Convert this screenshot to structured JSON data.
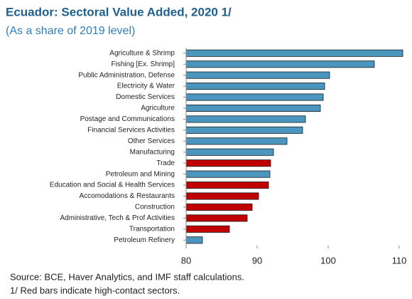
{
  "chart_data": {
    "type": "hbar",
    "title": "Ecuador: Sectoral Value Added, 2020 1/",
    "subtitle": "(As a share of 2019 level)",
    "categories": [
      "Agriculture & Shrimp",
      "Fishing [Ex. Shrimp]",
      "Public Administration, Defense",
      "Electricity & Water",
      "Domestic Services",
      "Agriculture",
      "Postage and Communications",
      "Financial Services Activities",
      "Other Services",
      "Manufacturing",
      "Trade",
      "Petroleum and Mining",
      "Education and Social & Health Services",
      "Accomodations & Restaurants",
      "Construction",
      "Administrative, Tech & Prof Activities",
      "Transportation",
      "Petroleum Refinery"
    ],
    "values": [
      110.5,
      106.5,
      100.2,
      99.5,
      99.3,
      98.9,
      96.8,
      96.4,
      94.2,
      92.3,
      91.9,
      91.8,
      91.6,
      90.2,
      89.3,
      88.6,
      86.1,
      82.3
    ],
    "colors": [
      "#4a96bf",
      "#4a96bf",
      "#4a96bf",
      "#4a96bf",
      "#4a96bf",
      "#4a96bf",
      "#4a96bf",
      "#4a96bf",
      "#4a96bf",
      "#4a96bf",
      "#c00000",
      "#4a96bf",
      "#c00000",
      "#c00000",
      "#c00000",
      "#c00000",
      "#c00000",
      "#4a96bf"
    ],
    "xlim": [
      80,
      111
    ],
    "xticks": [
      80,
      90,
      100,
      110
    ],
    "source": "Source: BCE, Haver Analytics, and IMF staff calculations.",
    "note": "1/ Red bars indicate high-contact sectors."
  }
}
